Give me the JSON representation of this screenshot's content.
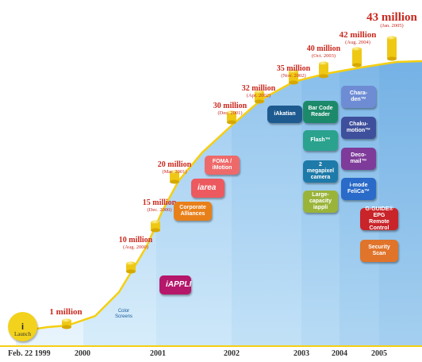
{
  "chart_data": {
    "type": "area",
    "unit": "million",
    "start_label": "Feb. 22 1999",
    "x_axis_labels": [
      "2000",
      "2001",
      "2002",
      "2003",
      "2004",
      "2005"
    ],
    "milestones": [
      {
        "value": "1 million",
        "date": ""
      },
      {
        "value": "10 million",
        "date": "(Aug. 2000)"
      },
      {
        "value": "15 million",
        "date": "(Dec. 2000)"
      },
      {
        "value": "20 million",
        "date": "(Mar. 2001)"
      },
      {
        "value": "30 million",
        "date": "(Dec. 2001)"
      },
      {
        "value": "32 million",
        "date": "(Apr. 2002)"
      },
      {
        "value": "35 million",
        "date": "(Nov. 2002)"
      },
      {
        "value": "40 million",
        "date": "(Oct. 2003)"
      },
      {
        "value": "42 million",
        "date": "(Aug. 2004)"
      },
      {
        "value": "43 million",
        "date": "(Jan. 2005)"
      }
    ],
    "launch_label": "Launch",
    "features": [
      {
        "label": "Color Screens",
        "color": "#2c7ac8"
      },
      {
        "label": "iAPPLI",
        "color": "#b5176b"
      },
      {
        "label": "Corporate Alliances",
        "color": "#e8801a"
      },
      {
        "label": "iarea",
        "color": "#ec5a5f"
      },
      {
        "label": "FOMA / iMotion",
        "color": "#ee6a6a"
      },
      {
        "label": "iAkatian",
        "color": "#1d5a8f"
      },
      {
        "label": "Bar Code Reader",
        "color": "#1c8a6a"
      },
      {
        "label": "Flash™",
        "color": "#2aa28e"
      },
      {
        "label": "2 megapixel camera",
        "color": "#1e7aa8"
      },
      {
        "label": "Large-capacity iappli",
        "color": "#9ab43a"
      },
      {
        "label": "Chara-den™",
        "color": "#6e8cd4"
      },
      {
        "label": "Chaku-motion™",
        "color": "#3e4f9c"
      },
      {
        "label": "Deco-mail™",
        "color": "#7e3b9a"
      },
      {
        "label": "i-mode FeliCa™",
        "color": "#2a6ac8"
      },
      {
        "label": "G-GUIDE® EPG Remote Control",
        "color": "#c8242a"
      },
      {
        "label": "Security Scan",
        "color": "#e0742a"
      }
    ]
  }
}
